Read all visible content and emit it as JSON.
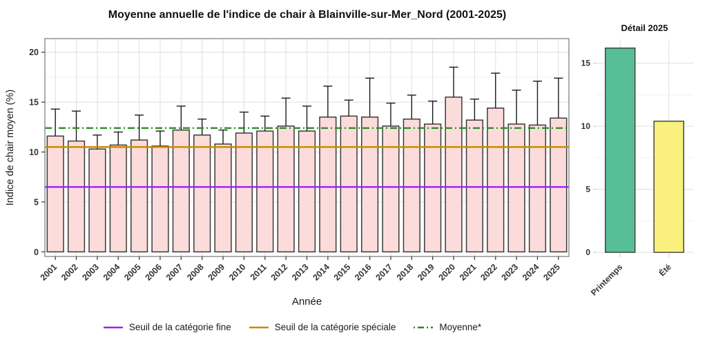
{
  "title": "Moyenne annuelle de l'indice de chair à Blainville-sur-Mer_Nord (2001-2025)",
  "chart_data": [
    {
      "id": "main",
      "type": "bar",
      "title": "Moyenne annuelle de l'indice de chair à Blainville-sur-Mer_Nord (2001-2025)",
      "xlabel": "Année",
      "ylabel": "Indice de chair moyen (%)",
      "categories": [
        "2001",
        "2002",
        "2003",
        "2004",
        "2005",
        "2006",
        "2007",
        "2008",
        "2009",
        "2010",
        "2011",
        "2012",
        "2013",
        "2014",
        "2015",
        "2016",
        "2017",
        "2018",
        "2019",
        "2020",
        "2021",
        "2022",
        "2023",
        "2024",
        "2025"
      ],
      "values": [
        11.6,
        11.1,
        10.3,
        10.7,
        11.2,
        10.6,
        12.2,
        11.7,
        10.8,
        11.9,
        12.1,
        12.6,
        12.1,
        13.5,
        13.6,
        13.5,
        12.6,
        13.3,
        12.8,
        15.5,
        13.2,
        14.4,
        12.8,
        12.7,
        13.4
      ],
      "error_upper": [
        14.3,
        14.1,
        11.7,
        12.0,
        13.7,
        12.1,
        14.6,
        13.3,
        12.2,
        14.0,
        13.6,
        15.4,
        14.6,
        16.6,
        15.2,
        17.4,
        14.9,
        15.7,
        15.1,
        18.5,
        15.3,
        17.9,
        16.2,
        17.1,
        17.4
      ],
      "yticks": [
        0,
        5,
        10,
        15,
        20
      ],
      "ylim": [
        -0.5,
        21.5
      ],
      "grid": true,
      "bar_fill": "#FBDCDA",
      "bar_stroke": "#3A3A3A",
      "reference_lines": [
        {
          "label": "Seuil de la catégorie fine",
          "value": 6.5,
          "color": "#A020F0",
          "style": "solid"
        },
        {
          "label": "Seuil de la catégorie spéciale",
          "value": 10.5,
          "color": "#C98A06",
          "style": "solid"
        },
        {
          "label": "Moyenne*",
          "value": 12.4,
          "color": "#228B22",
          "style": "dashdot"
        }
      ],
      "legend_position": "bottom"
    },
    {
      "id": "detail",
      "type": "bar",
      "title": "Détail 2025",
      "categories": [
        "Printemps",
        "Été"
      ],
      "values": [
        16.2,
        10.4
      ],
      "bar_colors": [
        "#57BE98",
        "#F9F07D"
      ],
      "bar_stroke": "#3A3A3A",
      "yticks": [
        0,
        5,
        10,
        15
      ],
      "ylim": [
        0,
        17
      ],
      "grid": true
    }
  ]
}
